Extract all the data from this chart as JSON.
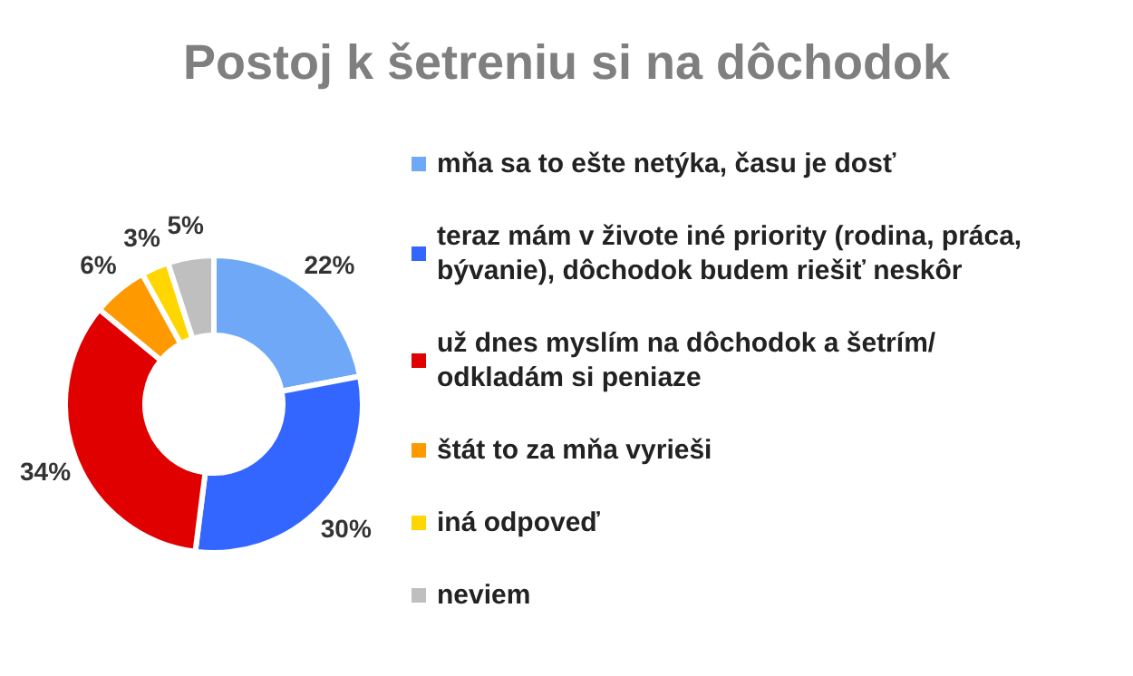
{
  "chart_data": {
    "type": "donut",
    "title": "Postoj k šetreniu si na dôchodok",
    "categories": [
      "mňa sa to ešte netýka, času je dosť",
      "teraz mám v živote iné priority (rodina, práca, bývanie), dôchodok budem riešiť neskôr",
      "už dnes myslím na dôchodok a šetrím/odkladám si peniaze",
      "štát to za mňa vyrieši",
      "iná odpoveď",
      "neviem"
    ],
    "values": [
      22,
      30,
      34,
      6,
      3,
      5
    ],
    "value_labels": [
      "22%",
      "30%",
      "34%",
      "6%",
      "3%",
      "5%"
    ],
    "colors": [
      "#6fa8f7",
      "#3366ff",
      "#e00000",
      "#ff9900",
      "#ffd600",
      "#bfbfbf"
    ],
    "legend": "right"
  }
}
